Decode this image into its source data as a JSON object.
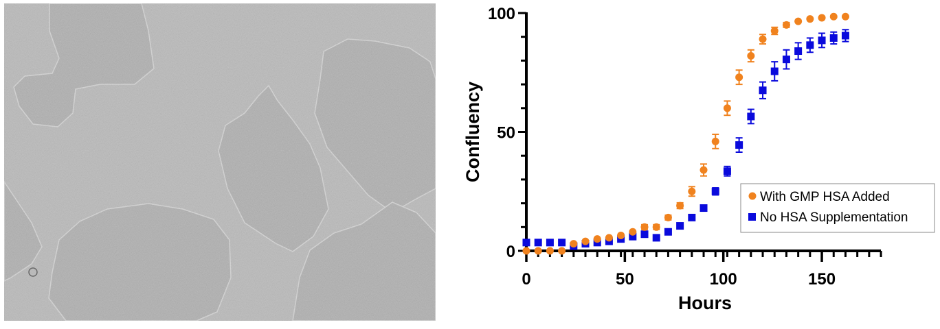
{
  "figure": {
    "left_panel": {
      "description": "Phase-contrast micrograph of cell colonies",
      "background_color": "#b9b9b9"
    },
    "colors": {
      "with_hsa": "#f0821e",
      "no_hsa": "#0a0adc",
      "axis": "#000000"
    }
  },
  "chart_data": {
    "type": "scatter",
    "title": "",
    "xlabel": "Hours",
    "ylabel": "Confluency",
    "xlim": [
      0,
      180
    ],
    "ylim": [
      0,
      100
    ],
    "x_ticks": [
      0,
      50,
      100,
      150
    ],
    "y_ticks": [
      0,
      50,
      100
    ],
    "grid": false,
    "legend_position": "lower right (inside plot)",
    "x": [
      0,
      6,
      12,
      18,
      24,
      30,
      36,
      42,
      48,
      54,
      60,
      66,
      72,
      78,
      84,
      90,
      96,
      102,
      108,
      114,
      120,
      126,
      132,
      138,
      144,
      150,
      156,
      162
    ],
    "series": [
      {
        "name": "With GMP HSA Added",
        "marker": "circle",
        "color": "#f0821e",
        "values": [
          0,
          0,
          0,
          0,
          3,
          4,
          5,
          5.5,
          6.5,
          8,
          10,
          10,
          14,
          19,
          25,
          34,
          46,
          60,
          73,
          82,
          89,
          92.5,
          95,
          96.5,
          97.5,
          98,
          98.5,
          98.5
        ],
        "errors": [
          0,
          0,
          0,
          0,
          0.5,
          0.5,
          0.5,
          0.5,
          0.8,
          0.8,
          1,
          1,
          1,
          1.2,
          2,
          2.5,
          3,
          3,
          3,
          2.5,
          2,
          1.5,
          1,
          0.8,
          0.5,
          0.5,
          0.5,
          0.5
        ]
      },
      {
        "name": "No HSA Supplementation",
        "marker": "square",
        "color": "#0a0adc",
        "values": [
          3.5,
          3.5,
          3.5,
          3.5,
          2,
          3,
          3.5,
          4,
          5,
          6,
          7,
          5.5,
          8,
          10.5,
          14,
          18,
          25,
          33.5,
          44.5,
          56.5,
          67.5,
          75.5,
          80.5,
          84,
          86.5,
          88.5,
          89.5,
          90.5
        ],
        "errors": [
          0.5,
          0.5,
          0.5,
          0.5,
          0.5,
          0.5,
          0.5,
          0.5,
          0.5,
          0.8,
          1,
          1,
          1,
          1,
          1,
          1.2,
          1.5,
          2,
          3,
          3,
          3.5,
          4,
          4,
          3.5,
          3,
          3,
          2.5,
          2.5
        ]
      }
    ]
  }
}
